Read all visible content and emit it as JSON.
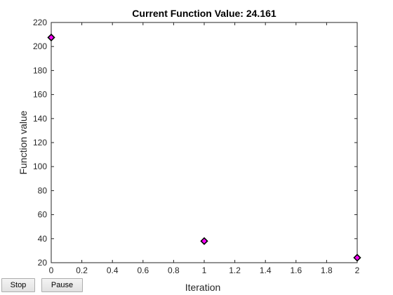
{
  "window": {
    "buttons": {
      "stop_label": "Stop",
      "pause_label": "Pause"
    }
  },
  "chart_data": {
    "type": "scatter",
    "title": "Current Function Value: 24.161",
    "xlabel": "Iteration",
    "ylabel": "Function value",
    "xlim": [
      0,
      2
    ],
    "ylim": [
      20,
      220
    ],
    "xticks": [
      0,
      0.2,
      0.4,
      0.6,
      0.8,
      1,
      1.2,
      1.4,
      1.6,
      1.8,
      2
    ],
    "xtick_labels": [
      "0",
      "0.2",
      "0.4",
      "0.6",
      "0.8",
      "1",
      "1.2",
      "1.4",
      "1.6",
      "1.8",
      "2"
    ],
    "yticks": [
      20,
      40,
      60,
      80,
      100,
      120,
      140,
      160,
      180,
      200,
      220
    ],
    "ytick_labels": [
      "20",
      "40",
      "60",
      "80",
      "100",
      "120",
      "140",
      "160",
      "180",
      "200",
      "220"
    ],
    "grid": false,
    "series": [
      {
        "x": [
          0,
          1,
          2
        ],
        "values": [
          207.5,
          38,
          24.161
        ],
        "marker": "diamond",
        "marker_face_color": "#ff00ff",
        "marker_edge_color": "#000000"
      }
    ]
  }
}
